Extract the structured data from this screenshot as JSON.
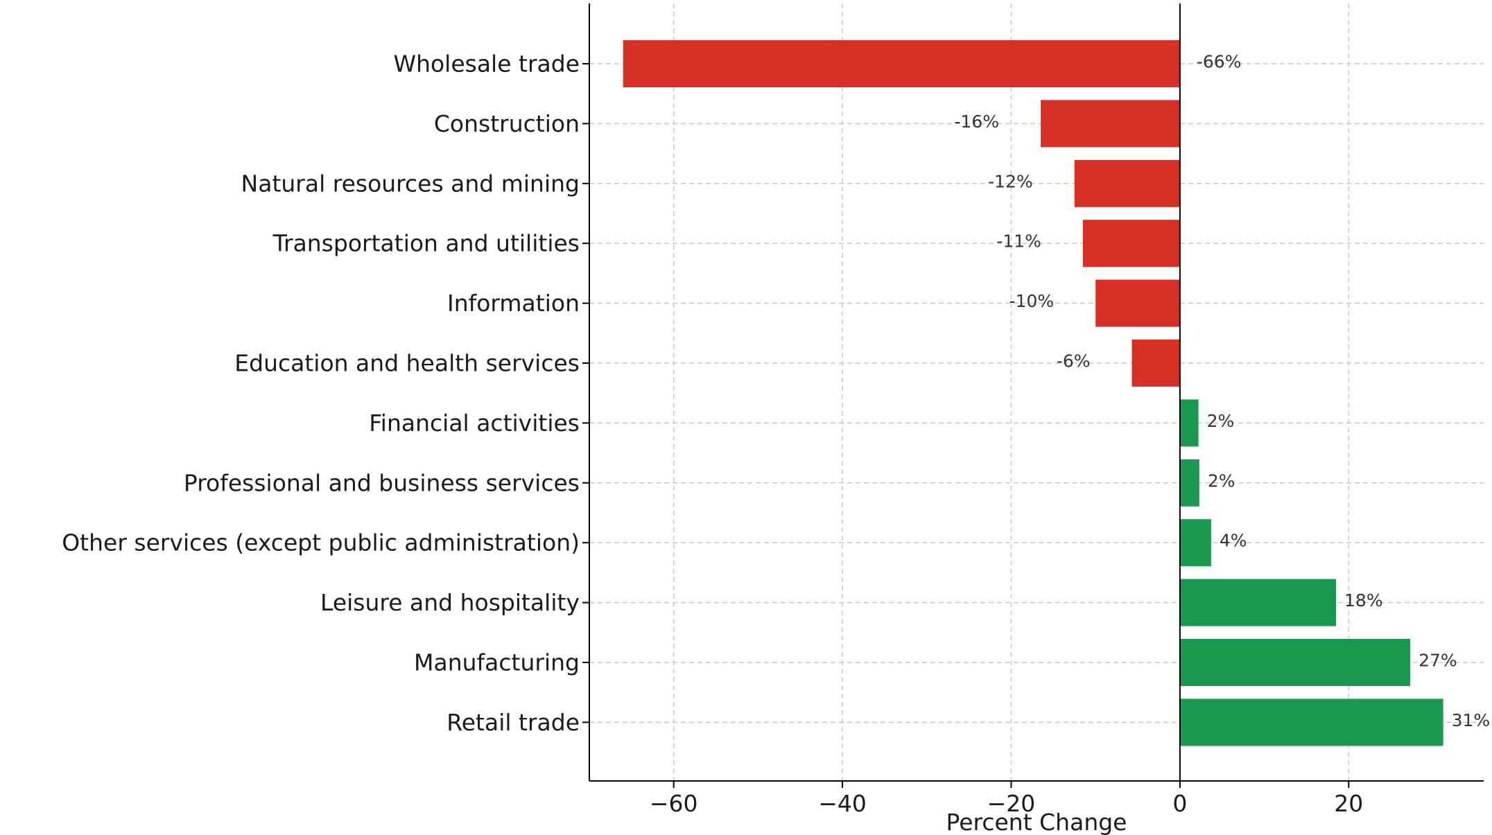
{
  "chart_data": {
    "type": "bar",
    "orientation": "horizontal",
    "categories": [
      "Wholesale trade",
      "Construction",
      "Natural resources and mining",
      "Transportation and utilities",
      "Information",
      "Education and health services",
      "Financial activities",
      "Professional and business services",
      "Other services (except public administration)",
      "Leisure and hospitality",
      "Manufacturing",
      "Retail trade"
    ],
    "values": [
      -66,
      -16.5,
      -12.5,
      -11.5,
      -10,
      -5.7,
      2.2,
      2.3,
      3.7,
      18.5,
      27.3,
      31.2
    ],
    "data_labels": [
      "-66%",
      "-16%",
      "-12%",
      "-11%",
      "-10%",
      "-6%",
      "2%",
      "2%",
      "4%",
      "18%",
      "27%",
      "31%"
    ],
    "title": "",
    "xlabel": "Percent Change",
    "ylabel": "",
    "xlim": [
      -70,
      36
    ],
    "xticks": [
      -60,
      -40,
      -20,
      0,
      20
    ],
    "xtick_labels": [
      "−60",
      "−40",
      "−20",
      "0",
      "20"
    ],
    "grid": true,
    "colors": {
      "negative": "#d73027",
      "positive": "#1a9850",
      "zero_line": "#000000",
      "grid": "#c8c8c8"
    }
  }
}
